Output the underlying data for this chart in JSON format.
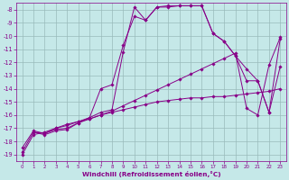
{
  "xlabel": "Windchill (Refroidissement éolien,°C)",
  "xlim": [
    -0.5,
    23.5
  ],
  "ylim": [
    -19.5,
    -7.5
  ],
  "xticks": [
    0,
    1,
    2,
    3,
    4,
    5,
    6,
    7,
    8,
    9,
    10,
    11,
    12,
    13,
    14,
    15,
    16,
    17,
    18,
    19,
    20,
    21,
    22,
    23
  ],
  "yticks": [
    -19,
    -18,
    -17,
    -16,
    -15,
    -14,
    -13,
    -12,
    -11,
    -10,
    -9,
    -8
  ],
  "bg_color": "#c5e8e8",
  "line_color": "#880088",
  "grid_color": "#99bbbb",
  "lines": [
    {
      "x": [
        0,
        1,
        2,
        3,
        4,
        5,
        6,
        7,
        8,
        9,
        10,
        11,
        12,
        13,
        14,
        15,
        16,
        17,
        18,
        19,
        20,
        21,
        22,
        23
      ],
      "y": [
        -18.8,
        -17.3,
        -17.5,
        -17.2,
        -17.1,
        -16.6,
        -16.2,
        -14.0,
        -13.7,
        -10.7,
        -8.5,
        -8.8,
        -7.8,
        -7.7,
        -7.7,
        -7.7,
        -7.7,
        -9.8,
        -10.4,
        -11.5,
        -13.4,
        -13.4,
        -15.8,
        -12.3
      ]
    },
    {
      "x": [
        1,
        2,
        3,
        4,
        5,
        6,
        7,
        8,
        9,
        10,
        11,
        12,
        13,
        14,
        15,
        16,
        17,
        18,
        19,
        20,
        21,
        22,
        23
      ],
      "y": [
        -17.3,
        -17.4,
        -17.0,
        -16.7,
        -16.5,
        -16.2,
        -15.8,
        -15.6,
        -11.2,
        -7.8,
        -8.8,
        -7.8,
        -7.8,
        -7.7,
        -7.7,
        -7.7,
        -9.8,
        -10.4,
        -11.5,
        -12.5,
        -13.4,
        -15.8,
        -10.2
      ]
    },
    {
      "x": [
        0,
        1,
        2,
        3,
        4,
        5,
        6,
        7,
        8,
        9,
        10,
        11,
        12,
        13,
        14,
        15,
        16,
        17,
        18,
        19,
        20,
        21,
        22,
        23
      ],
      "y": [
        -19.0,
        -17.5,
        -17.3,
        -17.0,
        -16.8,
        -16.5,
        -16.3,
        -16.0,
        -15.7,
        -15.3,
        -14.9,
        -14.5,
        -14.1,
        -13.7,
        -13.3,
        -12.9,
        -12.5,
        -12.1,
        -11.7,
        -11.3,
        -15.5,
        -16.0,
        -12.2,
        -10.1
      ]
    },
    {
      "x": [
        0,
        1,
        2,
        3,
        4,
        5,
        6,
        7,
        8,
        9,
        10,
        11,
        12,
        13,
        14,
        15,
        16,
        17,
        18,
        19,
        20,
        21,
        22,
        23
      ],
      "y": [
        -18.5,
        -17.2,
        -17.4,
        -17.1,
        -17.0,
        -16.6,
        -16.3,
        -16.0,
        -15.8,
        -15.6,
        -15.4,
        -15.2,
        -15.0,
        -14.9,
        -14.8,
        -14.7,
        -14.7,
        -14.6,
        -14.6,
        -14.5,
        -14.4,
        -14.3,
        -14.2,
        -14.0
      ]
    }
  ]
}
